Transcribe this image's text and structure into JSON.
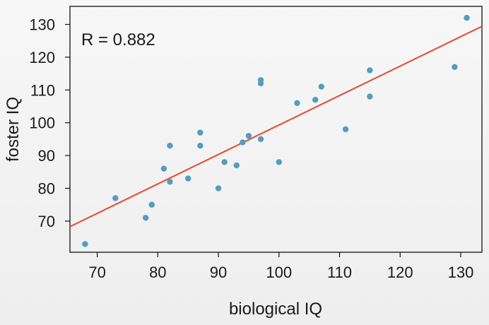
{
  "chart_data": {
    "type": "scatter",
    "xlabel": "biological IQ",
    "ylabel": "foster IQ",
    "annotation": "R =  0.882",
    "xlim": [
      65.5,
      133.5
    ],
    "ylim": [
      60.5,
      135.5
    ],
    "xticks": [
      70,
      80,
      90,
      100,
      110,
      120,
      130
    ],
    "yticks": [
      70,
      80,
      90,
      100,
      110,
      120,
      130
    ],
    "grid": false,
    "point_color": "#569bc0",
    "line_color": "#e4533a",
    "points": [
      {
        "x": 68,
        "y": 63
      },
      {
        "x": 73,
        "y": 77
      },
      {
        "x": 78,
        "y": 71
      },
      {
        "x": 79,
        "y": 75
      },
      {
        "x": 81,
        "y": 86
      },
      {
        "x": 82,
        "y": 82
      },
      {
        "x": 82,
        "y": 93
      },
      {
        "x": 85,
        "y": 83
      },
      {
        "x": 87,
        "y": 93
      },
      {
        "x": 87,
        "y": 97
      },
      {
        "x": 90,
        "y": 80
      },
      {
        "x": 91,
        "y": 88
      },
      {
        "x": 93,
        "y": 87
      },
      {
        "x": 94,
        "y": 94
      },
      {
        "x": 95,
        "y": 96
      },
      {
        "x": 97,
        "y": 95
      },
      {
        "x": 97,
        "y": 112
      },
      {
        "x": 97,
        "y": 113
      },
      {
        "x": 100,
        "y": 88
      },
      {
        "x": 103,
        "y": 106
      },
      {
        "x": 106,
        "y": 107
      },
      {
        "x": 107,
        "y": 111
      },
      {
        "x": 111,
        "y": 98
      },
      {
        "x": 115,
        "y": 108
      },
      {
        "x": 115,
        "y": 116
      },
      {
        "x": 129,
        "y": 117
      },
      {
        "x": 131,
        "y": 132
      }
    ],
    "fit_line": {
      "x1": 65.5,
      "y1": 68.3,
      "x2": 133.5,
      "y2": 129.4
    }
  }
}
